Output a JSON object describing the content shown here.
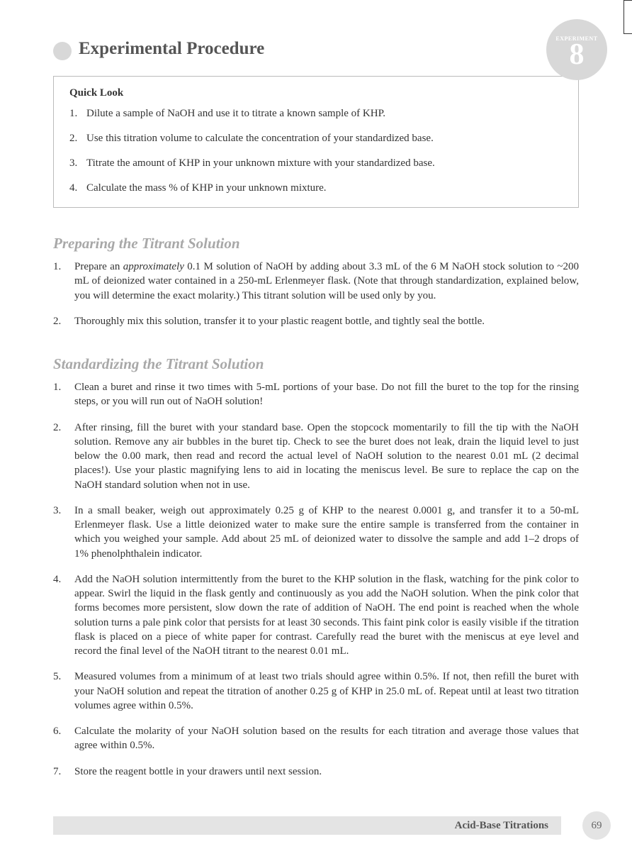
{
  "header": {
    "title": "Experimental Procedure",
    "badge_label": "EXPERIMENT",
    "badge_number": "8"
  },
  "quick_look": {
    "title": "Quick Look",
    "items": [
      {
        "num": "1.",
        "text": "Dilute a sample of NaOH and use it to titrate a known sample of KHP."
      },
      {
        "num": "2.",
        "text": "Use this titration volume to calculate the concentration of your standardized base."
      },
      {
        "num": "3.",
        "text": "Titrate the amount of KHP in your unknown mixture with your standardized base."
      },
      {
        "num": "4.",
        "text": "Calculate the mass % of KHP in your unknown mixture."
      }
    ]
  },
  "section1": {
    "title": "Preparing the Titrant Solution",
    "items": [
      {
        "num": "1.",
        "prefix": "Prepare an ",
        "italic": "approximately",
        "suffix": " 0.1 M solution of NaOH by adding about 3.3 mL of the 6 M NaOH stock solution to ~200 mL of deionized water contained in a 250-mL Erlenmeyer flask. (Note that through standardization, explained below, you will determine the exact molarity.) This titrant solution will be used only by you."
      },
      {
        "num": "2.",
        "text": "Thoroughly mix this solution, transfer it to your plastic reagent bottle, and tightly seal the bottle."
      }
    ]
  },
  "section2": {
    "title": "Standardizing the Titrant Solution",
    "items": [
      {
        "num": "1.",
        "text": "Clean a buret and rinse it two times with 5-mL portions of your base. Do not fill the buret to the top for the rinsing steps, or you will run out of NaOH solution!"
      },
      {
        "num": "2.",
        "text": "After rinsing, fill the buret with your standard base. Open the stopcock momentarily to fill the tip with the NaOH solution. Remove any air bubbles in the buret tip. Check to see the buret does not leak, drain the liquid level to just below the 0.00 mark, then read and record the actual level of NaOH solution to the nearest 0.01 mL (2 decimal places!). Use your plastic magnifying lens to aid in locating the meniscus level. Be sure to replace the cap on the NaOH standard solution when not in use."
      },
      {
        "num": "3.",
        "text": "In a small beaker, weigh out approximately 0.25 g of KHP to the nearest 0.0001 g, and transfer it to a 50-mL Erlenmeyer flask. Use a little deionized water to make sure the entire sample is transferred from the container in which you weighed your sample. Add about 25 mL of deionized water to dissolve the sample and add 1–2 drops of 1% phenolphthalein indicator."
      },
      {
        "num": "4.",
        "text": "Add the NaOH solution intermittently from the buret to the KHP solution in the flask, watching for the pink color to appear. Swirl the liquid in the flask gently and continuously as you add the NaOH solution. When the pink color that forms becomes more persistent, slow down the rate of addition of NaOH. The end point is reached when the whole solution turns a pale pink color that persists for at least 30 seconds. This faint pink color is easily visible if the titration flask is placed on a piece of white paper for contrast. Carefully read the buret with the meniscus at eye level and record the final level of the NaOH titrant to the nearest 0.01 mL."
      },
      {
        "num": "5.",
        "text": "Measured volumes from a minimum of at least two trials should agree within 0.5%. If not, then refill the buret with your NaOH solution and repeat the titration of another 0.25 g of KHP in 25.0 mL of. Repeat until at least two titration volumes agree within 0.5%."
      },
      {
        "num": "6.",
        "text": "Calculate the molarity of your NaOH solution based on the results for each titration and average those values that agree within 0.5%."
      },
      {
        "num": "7.",
        "text": "Store the reagent bottle in your drawers until next session."
      }
    ]
  },
  "footer": {
    "title": "Acid-Base Titrations",
    "page": "69"
  }
}
